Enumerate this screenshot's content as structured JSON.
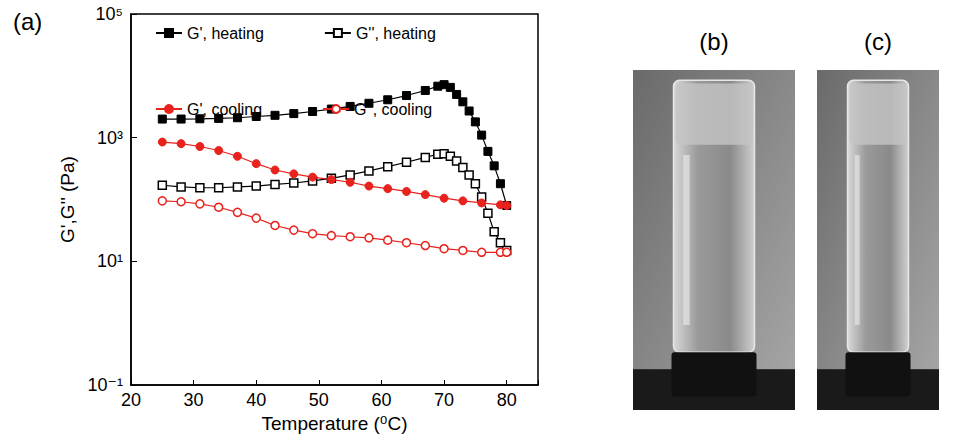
{
  "chart_data": {
    "type": "line",
    "panel_label": "(a)",
    "x_label": "Temperature (⁰C)",
    "y_label": "G',G'' (Pa)",
    "log": "y",
    "grid": false,
    "legend": "top",
    "xlim": [
      20,
      85
    ],
    "xticks": [
      20,
      30,
      40,
      50,
      60,
      70,
      80
    ],
    "ylim": [
      0.1,
      100000
    ],
    "yticks": [
      {
        "value": 0.1,
        "label": "10⁻¹"
      },
      {
        "value": 10,
        "label": "10¹"
      },
      {
        "value": 1000,
        "label": "10³"
      },
      {
        "value": 100000,
        "label": "10⁵"
      }
    ],
    "series": [
      {
        "name": "G', heating",
        "color": "#000000",
        "marker": "square",
        "line_style": "solid",
        "x": [
          25,
          28,
          31,
          34,
          37,
          40,
          43,
          46,
          49,
          52,
          55,
          58,
          61,
          64,
          67,
          69,
          70,
          71,
          72,
          73,
          74,
          75,
          76,
          77,
          78,
          79,
          80
        ],
        "values": [
          2000,
          2000,
          2020,
          2050,
          2100,
          2200,
          2300,
          2450,
          2650,
          2900,
          3200,
          3600,
          4100,
          4800,
          5800,
          6800,
          7200,
          6500,
          5000,
          3800,
          2700,
          1800,
          1100,
          600,
          350,
          180,
          80
        ]
      },
      {
        "name": "G'', heating",
        "color": "#000000",
        "marker": "open_square",
        "line_style": "solid",
        "x": [
          25,
          28,
          31,
          34,
          37,
          40,
          43,
          46,
          49,
          52,
          55,
          58,
          61,
          64,
          67,
          69,
          70,
          71,
          72,
          73,
          74,
          75,
          76,
          77,
          78,
          79,
          80
        ],
        "values": [
          170,
          160,
          155,
          155,
          160,
          165,
          175,
          185,
          200,
          220,
          250,
          290,
          340,
          400,
          480,
          540,
          550,
          500,
          420,
          330,
          250,
          180,
          110,
          60,
          30,
          20,
          15
        ]
      },
      {
        "name": "G', cooling",
        "color": "#e8221c",
        "marker": "circle",
        "line_style": "solid",
        "x": [
          25,
          28,
          31,
          34,
          37,
          40,
          43,
          46,
          49,
          52,
          55,
          58,
          61,
          64,
          67,
          70,
          73,
          76,
          79,
          80
        ],
        "values": [
          850,
          800,
          720,
          620,
          500,
          380,
          300,
          260,
          230,
          210,
          190,
          165,
          150,
          135,
          120,
          105,
          95,
          88,
          82,
          80
        ]
      },
      {
        "name": "G'', cooling",
        "color": "#e8221c",
        "marker": "open_circle",
        "line_style": "solid",
        "x": [
          25,
          28,
          31,
          34,
          37,
          40,
          43,
          46,
          49,
          52,
          55,
          58,
          61,
          64,
          67,
          70,
          73,
          76,
          79,
          80
        ],
        "values": [
          95,
          92,
          85,
          75,
          62,
          50,
          38,
          32,
          28,
          26,
          25,
          24,
          22,
          20,
          18,
          16,
          15,
          14,
          14,
          14
        ]
      }
    ]
  },
  "panels": [
    {
      "label": "(b)"
    },
    {
      "label": "(c)"
    }
  ]
}
